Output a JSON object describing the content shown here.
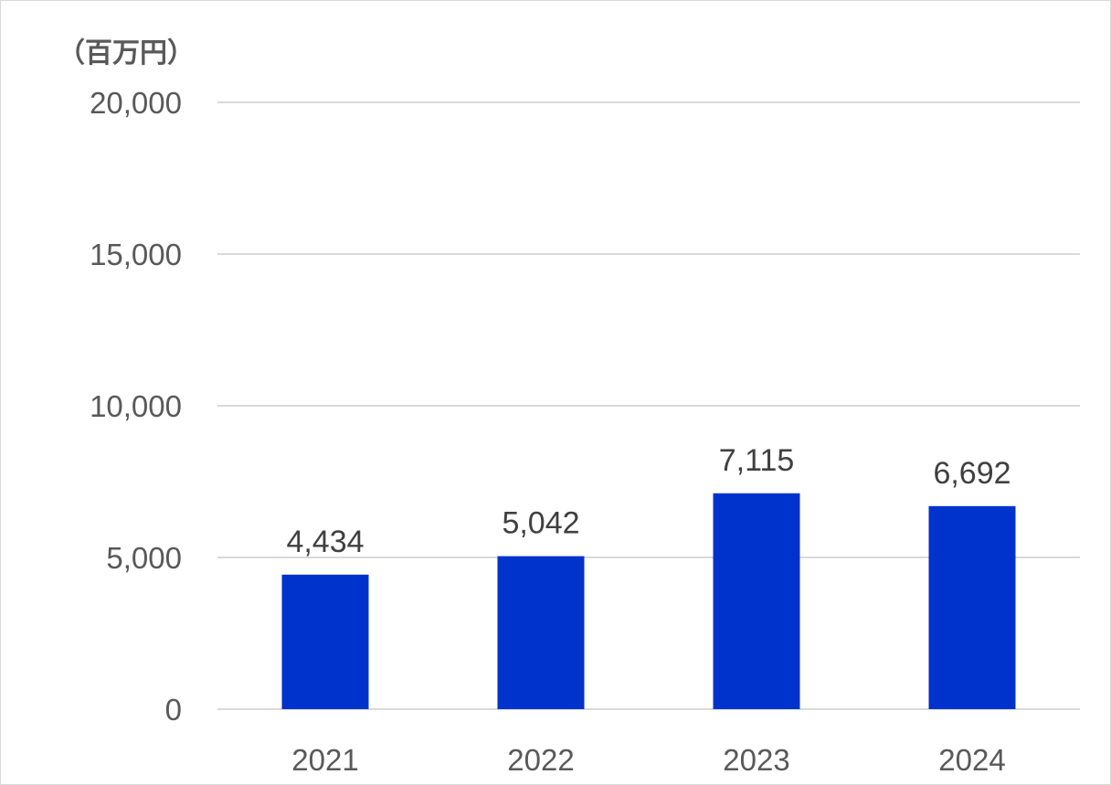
{
  "chart_data": {
    "type": "bar",
    "unit_label": "（百万円）",
    "categories": [
      "2021",
      "2022",
      "2023",
      "2024"
    ],
    "values": [
      4434,
      5042,
      7115,
      6692
    ],
    "value_labels": [
      "4,434",
      "5,042",
      "7,115",
      "6,692"
    ],
    "yticks": [
      0,
      5000,
      10000,
      15000,
      20000
    ],
    "ytick_labels": [
      "0",
      "5,000",
      "10,000",
      "15,000",
      "20,000"
    ],
    "ylim": [
      0,
      20000
    ],
    "grid": true,
    "bar_color": "#0033CC",
    "grid_color": "#D9D9D9"
  }
}
